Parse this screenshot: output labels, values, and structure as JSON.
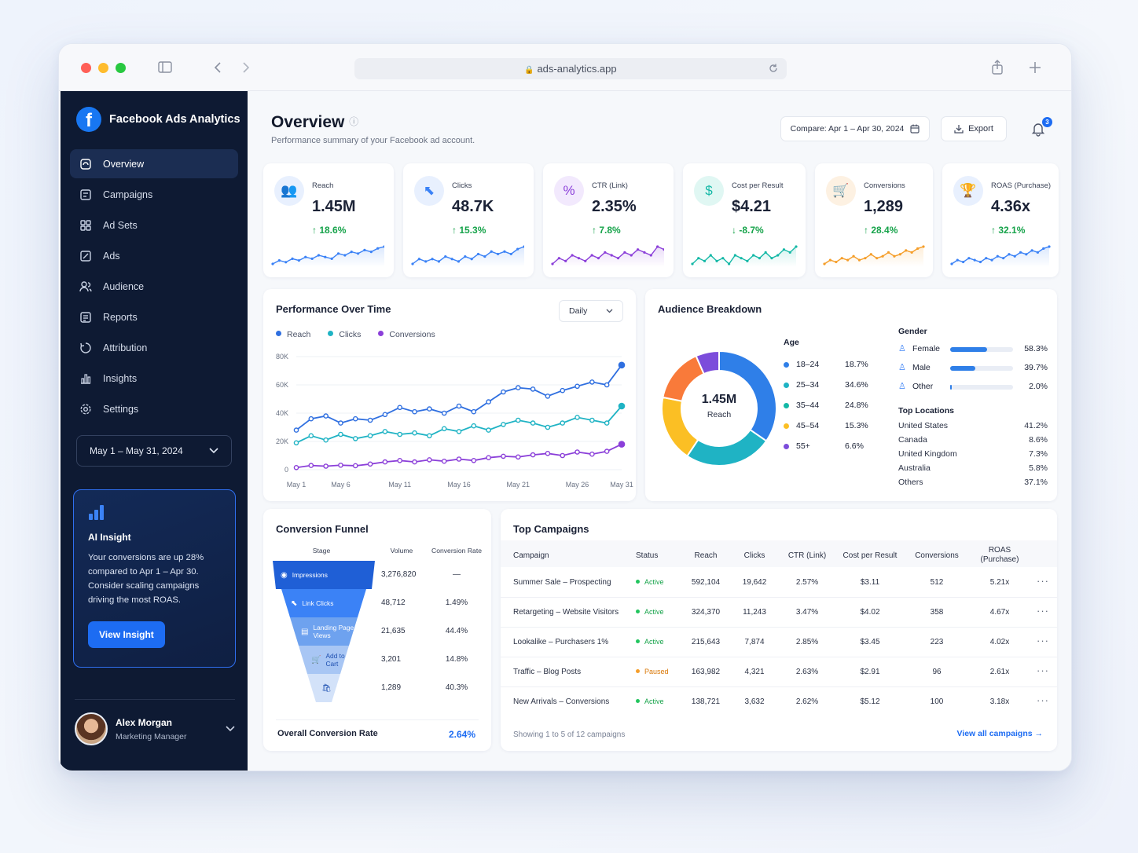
{
  "browser": {
    "url": "ads-analytics.app"
  },
  "app": {
    "name": "Facebook Ads Analytics"
  },
  "sidebar": {
    "items": [
      {
        "label": "Overview",
        "icon": "home-icon"
      },
      {
        "label": "Campaigns",
        "icon": "campaigns-icon"
      },
      {
        "label": "Ad Sets",
        "icon": "grid-icon"
      },
      {
        "label": "Ads",
        "icon": "edit-icon"
      },
      {
        "label": "Audience",
        "icon": "users-icon"
      },
      {
        "label": "Reports",
        "icon": "report-icon"
      },
      {
        "label": "Attribution",
        "icon": "attribution-icon"
      },
      {
        "label": "Insights",
        "icon": "bar-chart-icon"
      },
      {
        "label": "Settings",
        "icon": "gear-icon"
      }
    ],
    "date_range": "May 1 – May 31, 2024",
    "insight": {
      "title": "AI Insight",
      "body": "Your conversions are up 28% compared to Apr 1 – Apr 30. Consider scaling campaigns driving the most ROAS.",
      "button": "View Insight"
    },
    "user": {
      "name": "Alex Morgan",
      "role": "Marketing Manager"
    }
  },
  "header": {
    "title": "Overview",
    "subtitle": "Performance summary of your Facebook ad account.",
    "compare": "Compare: Apr 1 – Apr 30, 2024",
    "export": "Export",
    "notifications": "3"
  },
  "kpis": [
    {
      "label": "Reach",
      "value": "1.45M",
      "delta": "↑ 18.6%",
      "color": "#3b82f6",
      "bg": "#e8f0fe",
      "icon": "👥",
      "spark": [
        3,
        5,
        4,
        6,
        5,
        7,
        6,
        8,
        7,
        6,
        9,
        8,
        10,
        9,
        11,
        10,
        12,
        13
      ]
    },
    {
      "label": "Clicks",
      "value": "48.7K",
      "delta": "↑ 15.3%",
      "color": "#3b82f6",
      "bg": "#e8f0fe",
      "icon": "⬉",
      "spark": [
        4,
        6,
        5,
        6,
        5,
        7,
        6,
        5,
        7,
        6,
        8,
        7,
        9,
        8,
        9,
        8,
        10,
        11
      ]
    },
    {
      "label": "CTR (Link)",
      "value": "2.35%",
      "delta": "↑ 7.8%",
      "color": "#8b3fd9",
      "bg": "#f2e9fd",
      "icon": "%",
      "spark": [
        5,
        7,
        6,
        8,
        7,
        6,
        8,
        7,
        9,
        8,
        7,
        9,
        8,
        10,
        9,
        8,
        11,
        10
      ]
    },
    {
      "label": "Cost per Result",
      "value": "$4.21",
      "delta": "↓ -8.7%",
      "color": "#14b8a6",
      "bg": "#e0f7f3",
      "icon": "$",
      "spark": [
        5,
        7,
        6,
        8,
        6,
        7,
        5,
        8,
        7,
        6,
        8,
        7,
        9,
        7,
        8,
        10,
        9,
        11
      ]
    },
    {
      "label": "Conversions",
      "value": "1,289",
      "delta": "↑ 28.4%",
      "color": "#f59e2a",
      "bg": "#fdf1e2",
      "icon": "🛒",
      "spark": [
        3,
        5,
        4,
        6,
        5,
        7,
        5,
        6,
        8,
        6,
        7,
        9,
        7,
        8,
        10,
        9,
        11,
        12
      ]
    },
    {
      "label": "ROAS (Purchase)",
      "value": "4.36x",
      "delta": "↑ 32.1%",
      "color": "#3b82f6",
      "bg": "#e8f0fe",
      "icon": "🏆",
      "spark": [
        4,
        6,
        5,
        7,
        6,
        5,
        7,
        6,
        8,
        7,
        9,
        8,
        10,
        9,
        11,
        10,
        12,
        13
      ]
    }
  ],
  "performance": {
    "title": "Performance Over Time",
    "granularity": "Daily",
    "legend": [
      "Reach",
      "Clicks",
      "Conversions"
    ]
  },
  "chart_data": {
    "type": "line",
    "x": [
      "May 1",
      "May 3",
      "May 4",
      "May 6",
      "May 7",
      "May 9",
      "May 10",
      "May 11",
      "May 12",
      "May 14",
      "May 15",
      "May 16",
      "May 17",
      "May 19",
      "May 20",
      "May 21",
      "May 22",
      "May 24",
      "May 25",
      "May 26",
      "May 28",
      "May 29",
      "May 31"
    ],
    "xticks": [
      "May 1",
      "May 6",
      "May 11",
      "May 16",
      "May 21",
      "May 26",
      "May 31"
    ],
    "yticks": [
      "80K",
      "60K",
      "40K",
      "20K",
      "0"
    ],
    "ylim": [
      0,
      80000
    ],
    "series": [
      {
        "name": "Reach",
        "color": "#2f6fe0",
        "values": [
          28000,
          36000,
          38000,
          33000,
          36000,
          35000,
          39000,
          44000,
          41000,
          43000,
          40000,
          45000,
          41000,
          48000,
          55000,
          58000,
          57000,
          52000,
          56000,
          59000,
          62000,
          60000,
          74000
        ]
      },
      {
        "name": "Clicks",
        "color": "#1fb3c4",
        "values": [
          19000,
          24000,
          21000,
          25000,
          22000,
          24000,
          27000,
          25000,
          26000,
          24000,
          29000,
          27000,
          31000,
          28000,
          32000,
          35000,
          33000,
          30000,
          33000,
          37000,
          35000,
          33000,
          45000
        ]
      },
      {
        "name": "Conversions",
        "color": "#8b3fd9",
        "values": [
          1500,
          3000,
          2500,
          3200,
          2800,
          4000,
          5500,
          6500,
          5500,
          7000,
          6000,
          7500,
          6500,
          8500,
          9500,
          9000,
          10500,
          11500,
          10000,
          12500,
          11000,
          13000,
          18000
        ]
      }
    ]
  },
  "audience": {
    "title": "Audience Breakdown",
    "center_value": "1.45M",
    "center_label": "Reach",
    "age_title": "Age",
    "age": [
      {
        "label": "18–24",
        "pct": "18.7%",
        "value": 18.7,
        "color": "#2f7fe8"
      },
      {
        "label": "25–34",
        "pct": "34.6%",
        "value": 34.6,
        "color": "#1fb3c4"
      },
      {
        "label": "35–44",
        "pct": "24.8%",
        "value": 24.8,
        "color": "#14b8a6"
      },
      {
        "label": "45–54",
        "pct": "15.3%",
        "value": 15.3,
        "color": "#fbbf24"
      },
      {
        "label": "55+",
        "pct": "6.6%",
        "value": 6.6,
        "color": "#7c4ddb"
      }
    ],
    "donut_segments": [
      {
        "value": 34.6,
        "color": "#2f7fe8"
      },
      {
        "value": 24.8,
        "color": "#1fb3c4"
      },
      {
        "value": 18.7,
        "color": "#fbbf24"
      },
      {
        "value": 15.3,
        "color": "#f97a3a"
      },
      {
        "value": 6.6,
        "color": "#7c4ddb"
      }
    ],
    "gender_title": "Gender",
    "gender": [
      {
        "label": "Female",
        "pct": "58.3%",
        "value": 58.3
      },
      {
        "label": "Male",
        "pct": "39.7%",
        "value": 39.7
      },
      {
        "label": "Other",
        "pct": "2.0%",
        "value": 2.0
      }
    ],
    "locations_title": "Top Locations",
    "locations": [
      {
        "label": "United States",
        "pct": "41.2%"
      },
      {
        "label": "Canada",
        "pct": "8.6%"
      },
      {
        "label": "United Kingdom",
        "pct": "7.3%"
      },
      {
        "label": "Australia",
        "pct": "5.8%"
      },
      {
        "label": "Others",
        "pct": "37.1%"
      }
    ]
  },
  "funnel": {
    "title": "Conversion Funnel",
    "headers": [
      "Stage",
      "Volume",
      "Conversion Rate"
    ],
    "stages": [
      {
        "label": "Impressions",
        "volume": "3,276,820",
        "rate": "—",
        "icon": "eye-icon"
      },
      {
        "label": "Link Clicks",
        "volume": "48,712",
        "rate": "1.49%",
        "icon": "cursor-icon"
      },
      {
        "label": "Landing Page Views",
        "volume": "21,635",
        "rate": "44.4%",
        "icon": "page-icon"
      },
      {
        "label": "Add to Cart",
        "volume": "3,201",
        "rate": "14.8%",
        "icon": "cart-icon"
      },
      {
        "label": "Purchases",
        "volume": "1,289",
        "rate": "40.3%",
        "icon": "bag-icon"
      }
    ],
    "overall_label": "Overall Conversion Rate",
    "overall_value": "2.64%"
  },
  "campaigns": {
    "title": "Top Campaigns",
    "headers": [
      "Campaign",
      "Status",
      "Reach",
      "Clicks",
      "CTR (Link)",
      "Cost per Result",
      "Conversions",
      "ROAS",
      "(Purchase)"
    ],
    "rows": [
      {
        "name": "Summer Sale – Prospecting",
        "status": "Active",
        "reach": "592,104",
        "clicks": "19,642",
        "ctr": "2.57%",
        "cpr": "$3.11",
        "conv": "512",
        "roas": "5.21x"
      },
      {
        "name": "Retargeting – Website Visitors",
        "status": "Active",
        "reach": "324,370",
        "clicks": "11,243",
        "ctr": "3.47%",
        "cpr": "$4.02",
        "conv": "358",
        "roas": "4.67x"
      },
      {
        "name": "Lookalike – Purchasers 1%",
        "status": "Active",
        "reach": "215,643",
        "clicks": "7,874",
        "ctr": "2.85%",
        "cpr": "$3.45",
        "conv": "223",
        "roas": "4.02x"
      },
      {
        "name": "Traffic – Blog Posts",
        "status": "Paused",
        "reach": "163,982",
        "clicks": "4,321",
        "ctr": "2.63%",
        "cpr": "$2.91",
        "conv": "96",
        "roas": "2.61x"
      },
      {
        "name": "New Arrivals – Conversions",
        "status": "Active",
        "reach": "138,721",
        "clicks": "3,632",
        "ctr": "2.62%",
        "cpr": "$5.12",
        "conv": "100",
        "roas": "3.18x"
      }
    ],
    "footer": "Showing 1 to 5 of 12 campaigns",
    "view_all": "View all campaigns"
  }
}
